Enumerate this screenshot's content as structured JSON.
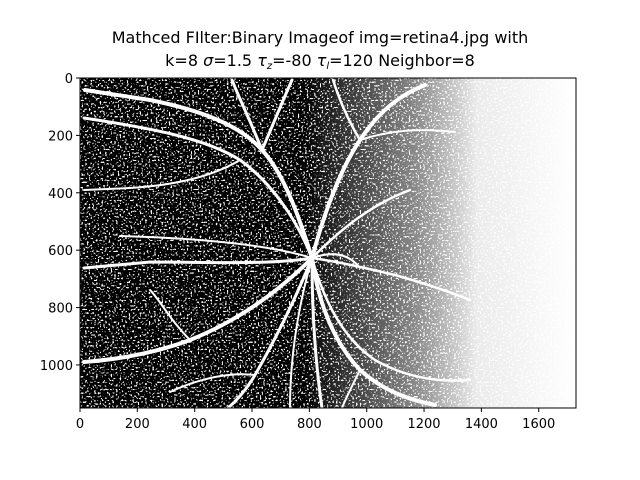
{
  "figure": {
    "title_line1": "Mathced FIlter:Binary Imageof img=retina4.jpg with",
    "title_line2": {
      "k": "k=8",
      "sigma_sym": "σ",
      "sigma_val": "=1.5",
      "tau_sym": "τ",
      "tau_z_sub": "z",
      "tau_z_val": "=-80",
      "tau_l_sub": "l",
      "tau_l_val": "=120",
      "neighbor": "Neighbor=8"
    }
  },
  "image": {
    "description": "binary (black/white) matched-filter vessel map of a retina",
    "colors": {
      "background": "#000000",
      "vessels": "#ffffff",
      "frame": "#000000"
    }
  },
  "axes": {
    "x": {
      "range": [
        0,
        1730
      ],
      "ticks": [
        0,
        200,
        400,
        600,
        800,
        1000,
        1200,
        1400,
        1600
      ]
    },
    "y": {
      "range": [
        1150,
        0
      ],
      "ticks": [
        0,
        200,
        400,
        600,
        800,
        1000
      ]
    }
  }
}
